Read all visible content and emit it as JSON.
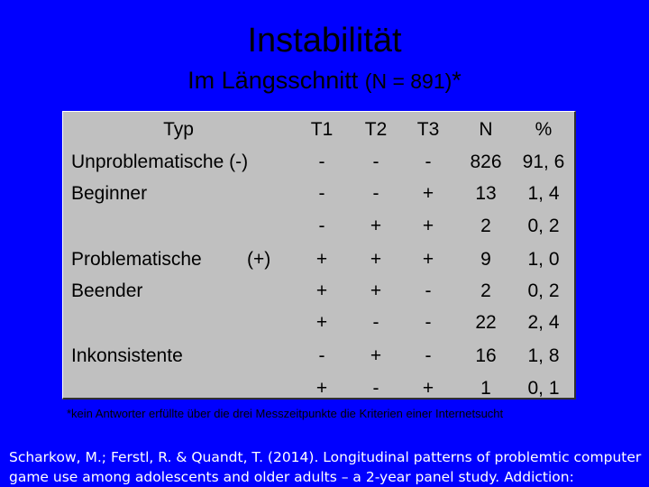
{
  "slide": {
    "title": "Instabilität",
    "subtitle_main": "Im Längsschnitt",
    "subtitle_paren": "(N = 891)",
    "subtitle_star": "*"
  },
  "table": {
    "headers": {
      "typ": "Typ",
      "t1": "T1",
      "t2": "T2",
      "t3": "T3",
      "n": "N",
      "pct": "%"
    },
    "groups": {
      "unproblematische": "Unproblematische (-)",
      "beginner": "Beginner",
      "problematische": "Problematische",
      "problematische_sign": "(+)",
      "beender": "Beender",
      "inkonsistente": "Inkonsistente"
    },
    "rows": [
      {
        "t1": "-",
        "t2": "-",
        "t3": "-",
        "n": "826",
        "pct": "91, 6"
      },
      {
        "t1": "-",
        "t2": "-",
        "t3": "+",
        "n": "13",
        "pct": "1, 4"
      },
      {
        "t1": "-",
        "t2": "+",
        "t3": "+",
        "n": "2",
        "pct": "0, 2"
      },
      {
        "t1": "+",
        "t2": "+",
        "t3": "+",
        "n": "9",
        "pct": "1, 0"
      },
      {
        "t1": "+",
        "t2": "+",
        "t3": "-",
        "n": "2",
        "pct": "0, 2"
      },
      {
        "t1": "+",
        "t2": "-",
        "t3": "-",
        "n": "22",
        "pct": "2, 4"
      },
      {
        "t1": "-",
        "t2": "+",
        "t3": "-",
        "n": "16",
        "pct": "1, 8"
      },
      {
        "t1": "+",
        "t2": "-",
        "t3": "+",
        "n": "1",
        "pct": "0, 1"
      }
    ]
  },
  "footnote": "*kein Antworter erfüllte über die drei Messzeitpunkte die Kriterien einer Internetsucht",
  "citation": "Scharkow, M.;  Ferstl, R. & Quandt, T. (2014). Longitudinal patterns of problemtic computer game use among adolescents and older adults – a 2-year panel study. Addiction:"
}
